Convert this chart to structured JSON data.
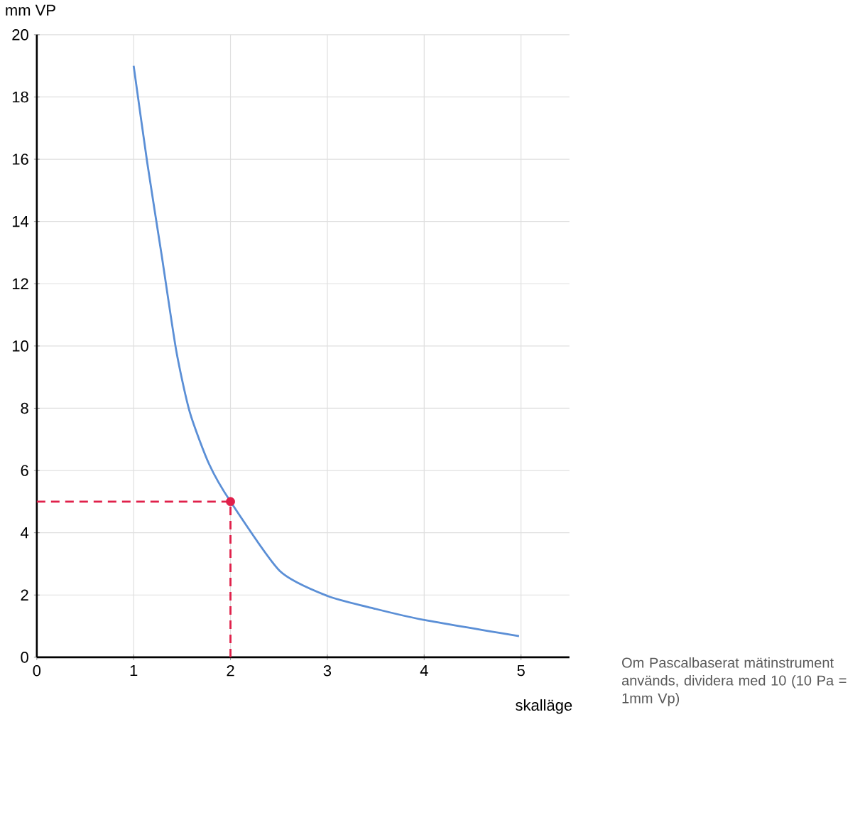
{
  "chart_data": {
    "type": "line",
    "xlabel": "skalläge",
    "ylabel": "mm VP",
    "xlim": [
      0,
      5.5
    ],
    "ylim": [
      0,
      20
    ],
    "xticks": [
      0,
      1,
      2,
      3,
      4,
      5
    ],
    "yticks": [
      0,
      2,
      4,
      6,
      8,
      10,
      12,
      14,
      16,
      18,
      20
    ],
    "grid": true,
    "series": [
      {
        "color": "#5b8fd6",
        "x": [
          1,
          1.14,
          1.29,
          1.44,
          1.58,
          1.78,
          2,
          2.51,
          3,
          3.49,
          3.98,
          4.98
        ],
        "values": [
          19,
          15.9,
          12.9,
          9.85,
          7.87,
          6.2,
          5,
          2.77,
          1.97,
          1.56,
          1.21,
          0.68
        ]
      },
      {
        "type": "line",
        "color": "#e0204a",
        "line_style": "dashed",
        "x": [
          0,
          2,
          2
        ],
        "values": [
          5,
          5,
          0
        ]
      },
      {
        "type": "scatter",
        "color": "#e0204a",
        "marker": "circle",
        "x": [
          2
        ],
        "values": [
          5
        ]
      }
    ],
    "annotations": [
      "Om Pascalbaserat mätinstrument används, dividera med 10 (10 Pa = 1mm Vp)"
    ]
  }
}
